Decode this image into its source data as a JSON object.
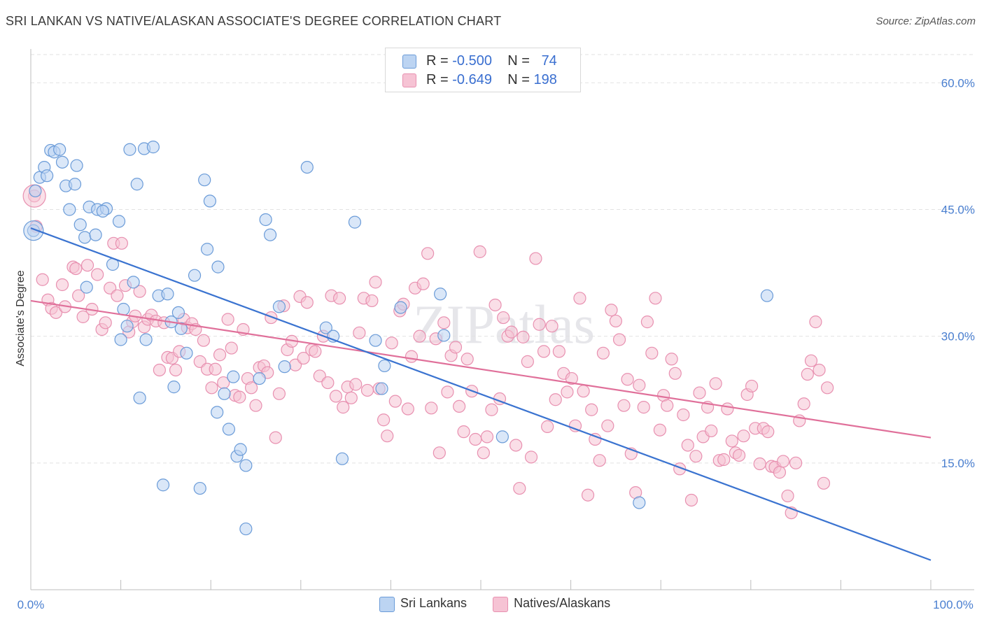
{
  "header": {
    "title": "SRI LANKAN VS NATIVE/ALASKAN ASSOCIATE'S DEGREE CORRELATION CHART",
    "source": "Source: ZipAtlas.com"
  },
  "legend_top": {
    "rows": [
      {
        "r_label": "R =",
        "r_value": "-0.500",
        "n_label": "N =",
        "n_value": "74"
      },
      {
        "r_label": "R =",
        "r_value": "-0.649",
        "n_label": "N =",
        "n_value": "198"
      }
    ]
  },
  "legend_bottom": {
    "items": [
      "Sri Lankans",
      "Natives/Alaskans"
    ]
  },
  "colors": {
    "blue_fill": "#bcd4f2",
    "blue_stroke": "#6a9bd8",
    "blue_line": "#3a73d0",
    "pink_fill": "#f6c3d4",
    "pink_stroke": "#e890b0",
    "pink_line": "#e0709a",
    "tick_label": "#4a7fd0",
    "grid": "#e2e2e2"
  },
  "chart_data": {
    "type": "scatter",
    "title": "SRI LANKAN VS NATIVE/ALASKAN ASSOCIATE'S DEGREE CORRELATION CHART",
    "xlabel": "",
    "ylabel": "Associate's Degree",
    "xlim": [
      0,
      100
    ],
    "ylim": [
      0,
      64
    ],
    "x_tick_labels": [
      "0.0%",
      "100.0%"
    ],
    "y_ticks": [
      15,
      30,
      45,
      60
    ],
    "y_tick_labels": [
      "15.0%",
      "30.0%",
      "45.0%",
      "60.0%"
    ],
    "grid": true,
    "legend": "top-center",
    "series": [
      {
        "name": "Sri Lankans",
        "trend": {
          "x0": 0,
          "y0": 42.8,
          "x1": 100,
          "y1": 3.5
        },
        "points": [
          [
            0.3,
            42.5
          ],
          [
            0.5,
            47.2
          ],
          [
            1.0,
            48.8
          ],
          [
            1.5,
            50.0
          ],
          [
            1.8,
            49.0
          ],
          [
            2.2,
            52.0
          ],
          [
            2.6,
            51.8
          ],
          [
            3.2,
            52.1
          ],
          [
            3.5,
            50.6
          ],
          [
            3.9,
            47.8
          ],
          [
            4.3,
            45.0
          ],
          [
            4.9,
            48.0
          ],
          [
            5.1,
            50.2
          ],
          [
            5.5,
            43.2
          ],
          [
            6.0,
            41.7
          ],
          [
            6.5,
            45.3
          ],
          [
            6.2,
            35.8
          ],
          [
            7.4,
            45.0
          ],
          [
            7.2,
            42.0
          ],
          [
            8.4,
            45.1
          ],
          [
            8.0,
            44.8
          ],
          [
            9.1,
            38.5
          ],
          [
            9.8,
            43.6
          ],
          [
            10.3,
            33.2
          ],
          [
            10.0,
            29.6
          ],
          [
            10.7,
            31.2
          ],
          [
            11.0,
            52.1
          ],
          [
            11.4,
            36.4
          ],
          [
            11.8,
            48.0
          ],
          [
            12.6,
            52.2
          ],
          [
            12.8,
            29.6
          ],
          [
            13.6,
            52.4
          ],
          [
            14.2,
            34.8
          ],
          [
            15.2,
            35.0
          ],
          [
            15.6,
            31.7
          ],
          [
            15.9,
            24.0
          ],
          [
            16.4,
            32.8
          ],
          [
            16.7,
            30.9
          ],
          [
            17.3,
            28.0
          ],
          [
            18.2,
            37.2
          ],
          [
            19.3,
            48.5
          ],
          [
            19.6,
            40.3
          ],
          [
            19.9,
            46.0
          ],
          [
            20.8,
            38.2
          ],
          [
            21.5,
            23.2
          ],
          [
            22.0,
            19.0
          ],
          [
            20.7,
            21.0
          ],
          [
            22.5,
            25.2
          ],
          [
            22.9,
            15.8
          ],
          [
            23.3,
            16.6
          ],
          [
            23.9,
            14.7
          ],
          [
            25.4,
            25.0
          ],
          [
            26.1,
            43.8
          ],
          [
            26.6,
            42.0
          ],
          [
            27.6,
            33.5
          ],
          [
            28.2,
            26.4
          ],
          [
            30.7,
            50.0
          ],
          [
            32.8,
            31.0
          ],
          [
            33.6,
            30.0
          ],
          [
            34.6,
            15.5
          ],
          [
            36.0,
            43.5
          ],
          [
            38.3,
            29.5
          ],
          [
            39.3,
            26.5
          ],
          [
            39.0,
            23.8
          ],
          [
            41.1,
            33.4
          ],
          [
            45.5,
            35.0
          ],
          [
            45.9,
            30.1
          ],
          [
            52.4,
            18.1
          ],
          [
            67.6,
            10.3
          ],
          [
            81.8,
            34.8
          ],
          [
            14.7,
            12.4
          ],
          [
            18.8,
            12.0
          ],
          [
            23.9,
            7.2
          ],
          [
            12.1,
            22.7
          ]
        ]
      },
      {
        "name": "Natives/Alaskans",
        "trend": {
          "x0": 0,
          "y0": 34.2,
          "x1": 100,
          "y1": 18.0
        },
        "points": [
          [
            0.4,
            46.6
          ],
          [
            0.6,
            43.0
          ],
          [
            1.3,
            36.7
          ],
          [
            1.9,
            34.3
          ],
          [
            2.3,
            33.3
          ],
          [
            2.8,
            32.8
          ],
          [
            3.5,
            36.1
          ],
          [
            3.8,
            33.5
          ],
          [
            4.7,
            38.2
          ],
          [
            5.0,
            38.0
          ],
          [
            5.3,
            34.8
          ],
          [
            5.8,
            32.3
          ],
          [
            6.3,
            38.4
          ],
          [
            6.8,
            33.2
          ],
          [
            7.4,
            37.3
          ],
          [
            7.9,
            30.8
          ],
          [
            8.3,
            31.6
          ],
          [
            8.8,
            35.7
          ],
          [
            9.2,
            41.0
          ],
          [
            9.6,
            34.8
          ],
          [
            10.1,
            41.0
          ],
          [
            10.5,
            36.0
          ],
          [
            10.9,
            30.5
          ],
          [
            11.3,
            31.7
          ],
          [
            11.6,
            32.4
          ],
          [
            12.1,
            35.3
          ],
          [
            12.6,
            31.1
          ],
          [
            13.0,
            32.0
          ],
          [
            13.4,
            32.5
          ],
          [
            13.9,
            31.8
          ],
          [
            14.3,
            26.0
          ],
          [
            14.8,
            31.6
          ],
          [
            15.2,
            27.5
          ],
          [
            15.7,
            27.4
          ],
          [
            16.1,
            26.0
          ],
          [
            16.5,
            28.2
          ],
          [
            17.0,
            32.0
          ],
          [
            17.4,
            31.0
          ],
          [
            17.9,
            31.5
          ],
          [
            18.3,
            30.8
          ],
          [
            18.8,
            27.0
          ],
          [
            19.2,
            29.5
          ],
          [
            19.6,
            26.1
          ],
          [
            20.1,
            23.9
          ],
          [
            20.5,
            26.1
          ],
          [
            21.0,
            27.8
          ],
          [
            21.4,
            24.5
          ],
          [
            21.9,
            32.0
          ],
          [
            22.3,
            28.6
          ],
          [
            22.7,
            23.0
          ],
          [
            23.2,
            22.8
          ],
          [
            23.6,
            30.8
          ],
          [
            24.1,
            25.0
          ],
          [
            24.5,
            23.9
          ],
          [
            25.0,
            21.8
          ],
          [
            25.4,
            26.3
          ],
          [
            25.9,
            26.5
          ],
          [
            26.3,
            25.7
          ],
          [
            26.7,
            32.2
          ],
          [
            27.2,
            18.0
          ],
          [
            27.6,
            23.2
          ],
          [
            28.1,
            33.6
          ],
          [
            28.5,
            28.4
          ],
          [
            29.0,
            29.4
          ],
          [
            29.4,
            26.6
          ],
          [
            29.9,
            34.7
          ],
          [
            30.3,
            27.4
          ],
          [
            30.7,
            34.0
          ],
          [
            31.2,
            28.4
          ],
          [
            31.6,
            28.2
          ],
          [
            32.1,
            25.3
          ],
          [
            32.5,
            30.0
          ],
          [
            33.0,
            24.5
          ],
          [
            33.4,
            34.8
          ],
          [
            33.9,
            22.9
          ],
          [
            34.3,
            34.5
          ],
          [
            34.7,
            21.6
          ],
          [
            35.2,
            24.0
          ],
          [
            35.6,
            22.7
          ],
          [
            36.1,
            24.3
          ],
          [
            36.5,
            30.4
          ],
          [
            37.0,
            34.5
          ],
          [
            37.4,
            23.6
          ],
          [
            37.9,
            34.2
          ],
          [
            38.3,
            36.4
          ],
          [
            38.7,
            23.8
          ],
          [
            39.2,
            20.1
          ],
          [
            39.6,
            18.2
          ],
          [
            40.1,
            29.2
          ],
          [
            40.5,
            22.3
          ],
          [
            41.0,
            33.0
          ],
          [
            41.4,
            33.8
          ],
          [
            41.9,
            21.4
          ],
          [
            42.3,
            27.6
          ],
          [
            42.7,
            35.7
          ],
          [
            43.2,
            30.0
          ],
          [
            43.6,
            36.2
          ],
          [
            44.1,
            39.8
          ],
          [
            44.5,
            21.5
          ],
          [
            45.0,
            29.7
          ],
          [
            45.4,
            16.2
          ],
          [
            45.9,
            31.6
          ],
          [
            46.3,
            23.4
          ],
          [
            46.7,
            27.7
          ],
          [
            47.2,
            28.7
          ],
          [
            47.6,
            21.7
          ],
          [
            48.1,
            18.7
          ],
          [
            48.5,
            27.3
          ],
          [
            49.0,
            23.5
          ],
          [
            49.4,
            17.8
          ],
          [
            49.9,
            40.0
          ],
          [
            50.3,
            16.2
          ],
          [
            50.7,
            18.1
          ],
          [
            51.2,
            21.3
          ],
          [
            51.6,
            33.7
          ],
          [
            52.1,
            22.6
          ],
          [
            52.5,
            32.2
          ],
          [
            53.0,
            30.0
          ],
          [
            53.4,
            30.5
          ],
          [
            53.9,
            17.1
          ],
          [
            54.3,
            12.0
          ],
          [
            54.7,
            29.9
          ],
          [
            55.2,
            27.0
          ],
          [
            55.6,
            15.7
          ],
          [
            56.1,
            39.2
          ],
          [
            56.5,
            31.4
          ],
          [
            57.0,
            28.2
          ],
          [
            57.4,
            19.3
          ],
          [
            57.9,
            31.2
          ],
          [
            58.3,
            22.5
          ],
          [
            58.7,
            28.2
          ],
          [
            59.2,
            25.6
          ],
          [
            59.6,
            23.4
          ],
          [
            60.1,
            25.0
          ],
          [
            60.5,
            19.4
          ],
          [
            61.0,
            34.5
          ],
          [
            61.4,
            23.5
          ],
          [
            61.9,
            11.2
          ],
          [
            62.3,
            21.3
          ],
          [
            62.7,
            17.8
          ],
          [
            63.2,
            15.3
          ],
          [
            63.6,
            28.0
          ],
          [
            64.1,
            19.4
          ],
          [
            64.5,
            33.1
          ],
          [
            65.0,
            31.8
          ],
          [
            65.4,
            29.6
          ],
          [
            65.9,
            21.8
          ],
          [
            66.3,
            24.9
          ],
          [
            66.7,
            16.1
          ],
          [
            67.2,
            11.5
          ],
          [
            67.6,
            24.2
          ],
          [
            68.1,
            21.6
          ],
          [
            68.5,
            31.7
          ],
          [
            69.0,
            28.0
          ],
          [
            69.4,
            34.5
          ],
          [
            69.9,
            18.9
          ],
          [
            70.3,
            23.0
          ],
          [
            70.7,
            21.8
          ],
          [
            71.2,
            27.3
          ],
          [
            71.6,
            25.6
          ],
          [
            72.1,
            14.3
          ],
          [
            72.5,
            20.7
          ],
          [
            73.0,
            17.1
          ],
          [
            73.4,
            10.6
          ],
          [
            73.9,
            15.8
          ],
          [
            74.3,
            23.3
          ],
          [
            74.7,
            18.1
          ],
          [
            75.2,
            21.6
          ],
          [
            75.6,
            18.8
          ],
          [
            76.1,
            24.4
          ],
          [
            76.5,
            15.3
          ],
          [
            77.0,
            15.4
          ],
          [
            77.4,
            21.4
          ],
          [
            77.9,
            17.6
          ],
          [
            78.3,
            16.2
          ],
          [
            78.7,
            15.9
          ],
          [
            79.2,
            18.2
          ],
          [
            79.6,
            23.1
          ],
          [
            80.1,
            24.1
          ],
          [
            80.5,
            19.1
          ],
          [
            81.0,
            14.9
          ],
          [
            81.4,
            19.1
          ],
          [
            81.9,
            18.7
          ],
          [
            82.3,
            14.6
          ],
          [
            82.7,
            14.5
          ],
          [
            83.2,
            13.9
          ],
          [
            83.6,
            15.2
          ],
          [
            84.1,
            11.1
          ],
          [
            84.5,
            9.1
          ],
          [
            85.0,
            15.0
          ],
          [
            85.4,
            20.0
          ],
          [
            85.9,
            22.0
          ],
          [
            86.3,
            25.5
          ],
          [
            86.7,
            27.1
          ],
          [
            87.2,
            31.7
          ],
          [
            87.6,
            26.0
          ],
          [
            88.1,
            12.6
          ],
          [
            88.5,
            23.9
          ]
        ]
      }
    ]
  }
}
